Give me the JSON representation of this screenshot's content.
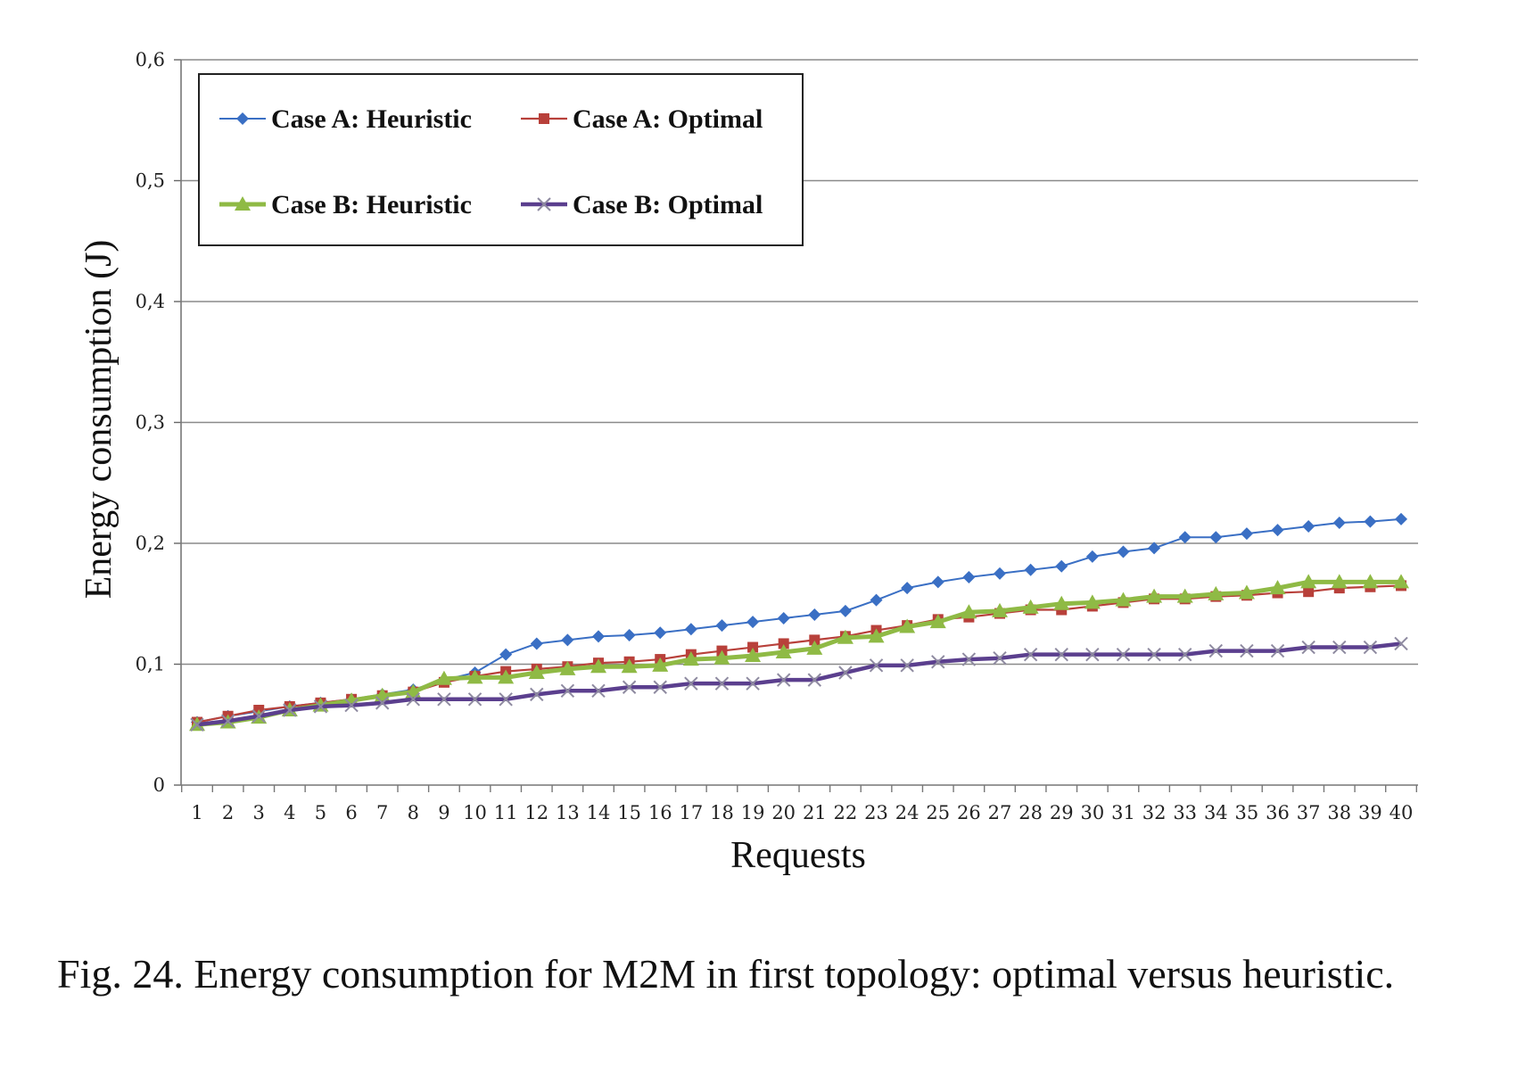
{
  "caption": "Fig. 24. Energy consumption for M2M in first topology: optimal versus heuristic.",
  "chart_data": {
    "type": "line",
    "title": "",
    "xlabel": "Requests",
    "ylabel": "Energy consumption (J)",
    "ylim": [
      0,
      0.6
    ],
    "y_ticks": [
      "0",
      "0,1",
      "0,2",
      "0,3",
      "0,4",
      "0,5",
      "0,6"
    ],
    "grid": "horizontal",
    "legend_position": "top-left",
    "x": [
      1,
      2,
      3,
      4,
      5,
      6,
      7,
      8,
      9,
      10,
      11,
      12,
      13,
      14,
      15,
      16,
      17,
      18,
      19,
      20,
      21,
      22,
      23,
      24,
      25,
      26,
      27,
      28,
      29,
      30,
      31,
      32,
      33,
      34,
      35,
      36,
      37,
      38,
      39,
      40
    ],
    "series": [
      {
        "name": "Case A: Heuristic",
        "color": "#3a6fc4",
        "marker": "diamond",
        "values": [
          0.052,
          0.057,
          0.061,
          0.065,
          0.068,
          0.071,
          0.075,
          0.079,
          0.087,
          0.093,
          0.108,
          0.117,
          0.12,
          0.123,
          0.124,
          0.126,
          0.129,
          0.132,
          0.135,
          0.138,
          0.141,
          0.144,
          0.153,
          0.163,
          0.168,
          0.172,
          0.175,
          0.178,
          0.181,
          0.189,
          0.193,
          0.196,
          0.205,
          0.205,
          0.208,
          0.211,
          0.214,
          0.217,
          0.218,
          0.22
        ]
      },
      {
        "name": "Case A: Optimal",
        "color": "#b8403a",
        "marker": "square",
        "values": [
          0.052,
          0.057,
          0.062,
          0.065,
          0.068,
          0.071,
          0.074,
          0.077,
          0.085,
          0.09,
          0.094,
          0.096,
          0.098,
          0.101,
          0.102,
          0.104,
          0.108,
          0.111,
          0.114,
          0.117,
          0.12,
          0.123,
          0.128,
          0.132,
          0.137,
          0.139,
          0.142,
          0.145,
          0.145,
          0.148,
          0.151,
          0.154,
          0.154,
          0.156,
          0.157,
          0.159,
          0.16,
          0.163,
          0.164,
          0.165
        ]
      },
      {
        "name": "Case B: Heuristic",
        "color": "#8fba45",
        "marker": "triangle",
        "values": [
          0.05,
          0.052,
          0.056,
          0.062,
          0.066,
          0.07,
          0.074,
          0.077,
          0.088,
          0.089,
          0.089,
          0.093,
          0.096,
          0.098,
          0.098,
          0.099,
          0.104,
          0.105,
          0.107,
          0.11,
          0.113,
          0.122,
          0.123,
          0.131,
          0.135,
          0.143,
          0.144,
          0.147,
          0.15,
          0.151,
          0.153,
          0.156,
          0.156,
          0.158,
          0.159,
          0.163,
          0.168,
          0.168,
          0.168,
          0.168
        ]
      },
      {
        "name": "Case B: Optimal",
        "color": "#5b3f8e",
        "marker": "x",
        "values": [
          0.05,
          0.053,
          0.057,
          0.062,
          0.065,
          0.066,
          0.068,
          0.071,
          0.071,
          0.071,
          0.071,
          0.075,
          0.078,
          0.078,
          0.081,
          0.081,
          0.084,
          0.084,
          0.084,
          0.087,
          0.087,
          0.093,
          0.099,
          0.099,
          0.102,
          0.104,
          0.105,
          0.108,
          0.108,
          0.108,
          0.108,
          0.108,
          0.108,
          0.111,
          0.111,
          0.111,
          0.114,
          0.114,
          0.114,
          0.117
        ]
      }
    ]
  }
}
